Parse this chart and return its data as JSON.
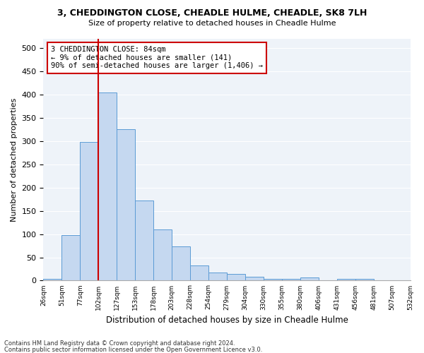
{
  "title1": "3, CHEDDINGTON CLOSE, CHEADLE HULME, CHEADLE, SK8 7LH",
  "title2": "Size of property relative to detached houses in Cheadle Hulme",
  "xlabel": "Distribution of detached houses by size in Cheadle Hulme",
  "ylabel": "Number of detached properties",
  "bin_labels": [
    "26sqm",
    "51sqm",
    "77sqm",
    "102sqm",
    "127sqm",
    "153sqm",
    "178sqm",
    "203sqm",
    "228sqm",
    "254sqm",
    "279sqm",
    "304sqm",
    "330sqm",
    "355sqm",
    "380sqm",
    "406sqm",
    "431sqm",
    "456sqm",
    "481sqm",
    "507sqm",
    "532sqm"
  ],
  "bar_values": [
    4,
    98,
    299,
    405,
    325,
    172,
    110,
    74,
    32,
    18,
    15,
    8,
    4,
    3,
    6,
    1,
    4,
    3,
    1,
    0
  ],
  "bar_color": "#c5d8f0",
  "bar_edge_color": "#5b9bd5",
  "vline_x_index": 2.5,
  "vline_color": "#cc0000",
  "annotation_text": "3 CHEDDINGTON CLOSE: 84sqm\n← 9% of detached houses are smaller (141)\n90% of semi-detached houses are larger (1,406) →",
  "annotation_box_color": "#ffffff",
  "annotation_box_edge": "#cc0000",
  "ylim": [
    0,
    520
  ],
  "yticks": [
    0,
    50,
    100,
    150,
    200,
    250,
    300,
    350,
    400,
    450,
    500
  ],
  "background_color": "#eef3f9",
  "footer1": "Contains HM Land Registry data © Crown copyright and database right 2024.",
  "footer2": "Contains public sector information licensed under the Open Government Licence v3.0."
}
